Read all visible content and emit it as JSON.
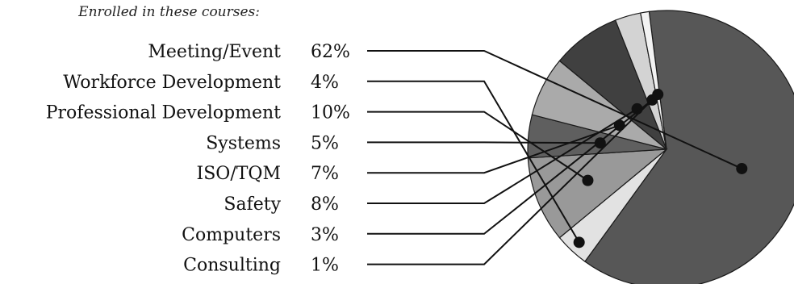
{
  "chart_data": {
    "type": "pie",
    "subtitle": "Enrolled in these courses:",
    "slices": [
      {
        "label": "Meeting/Event",
        "value": 62,
        "value_label": "62%",
        "color": "#575757"
      },
      {
        "label": "Workforce Development",
        "value": 4,
        "value_label": "4%",
        "color": "#e2e2e2"
      },
      {
        "label": "Professional Development",
        "value": 10,
        "value_label": "10%",
        "color": "#999999"
      },
      {
        "label": "Systems",
        "value": 5,
        "value_label": "5%",
        "color": "#5f5f5f"
      },
      {
        "label": "ISO/TQM",
        "value": 7,
        "value_label": "7%",
        "color": "#aaaaaa"
      },
      {
        "label": "Safety",
        "value": 8,
        "value_label": "8%",
        "color": "#404040"
      },
      {
        "label": "Computers",
        "value": 3,
        "value_label": "3%",
        "color": "#d3d3d3"
      },
      {
        "label": "Consulting",
        "value": 1,
        "value_label": "1%",
        "color": "#f2f2f2"
      }
    ]
  }
}
